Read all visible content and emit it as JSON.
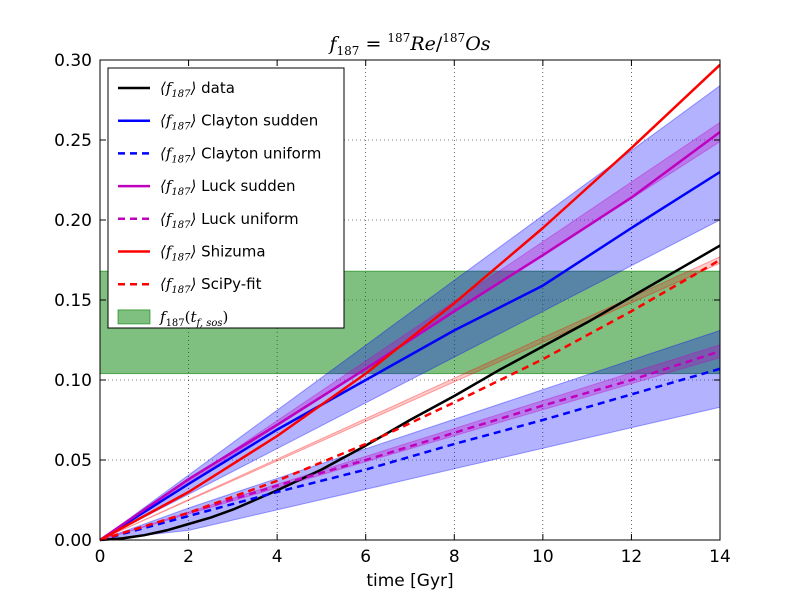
{
  "chart_data": {
    "type": "line",
    "title_parts": {
      "f": "f",
      "f_sub": "187",
      "eq": " = ",
      "sup1": "187",
      "re": "Re",
      "slash": "/",
      "sup2": "187",
      "os": "Os"
    },
    "xlabel": "time [Gyr]",
    "ylabel": "",
    "xlim": [
      0,
      14
    ],
    "ylim": [
      0,
      0.3
    ],
    "xticks": [
      0,
      2,
      4,
      6,
      8,
      10,
      12,
      14
    ],
    "xtick_labels": [
      "0",
      "2",
      "4",
      "6",
      "8",
      "10",
      "12",
      "14"
    ],
    "yticks": [
      0,
      0.05,
      0.1,
      0.15,
      0.2,
      0.25,
      0.3
    ],
    "ytick_labels": [
      "0.00",
      "0.05",
      "0.10",
      "0.15",
      "0.20",
      "0.25",
      "0.30"
    ],
    "grid": true,
    "legend_placement": "top-left",
    "series": [
      {
        "name": "data",
        "color": "#000000",
        "style": "solid",
        "x": [
          0,
          0.5,
          1,
          1.5,
          2,
          2.5,
          3,
          3.5,
          4,
          5,
          6,
          7,
          8,
          9,
          10,
          11,
          12,
          13,
          14
        ],
        "y": [
          0,
          0.001,
          0.003,
          0.006,
          0.01,
          0.014,
          0.019,
          0.025,
          0.031,
          0.044,
          0.059,
          0.075,
          0.09,
          0.106,
          0.121,
          0.136,
          0.152,
          0.168,
          0.184
        ]
      },
      {
        "name": "Clayton sudden",
        "color": "#0000ff",
        "style": "solid",
        "x": [
          0,
          2,
          4,
          6,
          8,
          10,
          12,
          14
        ],
        "y": [
          0,
          0.035,
          0.069,
          0.1,
          0.131,
          0.159,
          0.195,
          0.23
        ]
      },
      {
        "name": "Clayton uniform",
        "color": "#0000ff",
        "style": "dashed",
        "x": [
          0,
          2,
          4,
          6,
          8,
          10,
          12,
          14
        ],
        "y": [
          0,
          0.015,
          0.03,
          0.044,
          0.06,
          0.075,
          0.091,
          0.107
        ]
      },
      {
        "name": "Luck sudden",
        "color": "#bf00bf",
        "style": "solid",
        "x": [
          0,
          2,
          4,
          6,
          8,
          10,
          12,
          14
        ],
        "y": [
          0,
          0.038,
          0.072,
          0.107,
          0.143,
          0.178,
          0.214,
          0.255
        ]
      },
      {
        "name": "Luck uniform",
        "color": "#bf00bf",
        "style": "dashed",
        "x": [
          0,
          2,
          4,
          6,
          8,
          10,
          12,
          14
        ],
        "y": [
          0,
          0.017,
          0.034,
          0.05,
          0.067,
          0.084,
          0.1,
          0.118
        ]
      },
      {
        "name": "Shizuma",
        "color": "#ff0000",
        "style": "solid",
        "x": [
          0,
          2,
          4,
          6,
          8,
          10,
          12,
          14
        ],
        "y": [
          0,
          0.03,
          0.065,
          0.104,
          0.148,
          0.195,
          0.245,
          0.297
        ]
      },
      {
        "name": "SciPy-fit",
        "color": "#ff0000",
        "style": "dashed",
        "x": [
          0,
          2,
          4,
          6,
          8,
          10,
          12,
          14
        ],
        "y": [
          0,
          0.017,
          0.037,
          0.06,
          0.086,
          0.113,
          0.143,
          0.175
        ]
      }
    ],
    "bands": [
      {
        "color": "#0000ff",
        "opacity": 0.3,
        "x": [
          0,
          14
        ],
        "lower": [
          0,
          0.2
        ],
        "upper": [
          0,
          0.284
        ]
      },
      {
        "color": "#0000ff",
        "opacity": 0.3,
        "x": [
          0,
          2,
          14
        ],
        "lower": [
          0,
          0.006,
          0.083
        ],
        "upper": [
          0,
          0.02,
          0.131
        ]
      },
      {
        "color": "#bf00bf",
        "opacity": 0.3,
        "x": [
          0,
          14
        ],
        "lower": [
          0,
          0.249
        ],
        "upper": [
          0,
          0.261
        ]
      },
      {
        "color": "#bf00bf",
        "opacity": 0.3,
        "x": [
          0,
          14
        ],
        "lower": [
          0,
          0.114
        ],
        "upper": [
          0,
          0.122
        ]
      },
      {
        "color": "#ff0000",
        "opacity": 0.2,
        "x": [
          0,
          14
        ],
        "lower": [
          0,
          0.173
        ],
        "upper": [
          0,
          0.177
        ]
      }
    ],
    "hband": {
      "label_main": "f",
      "label_sub": "187",
      "label_paren_open": "(",
      "label_t": "t",
      "label_t_sub": "f, sos",
      "label_paren_close": ")",
      "color": "#008000",
      "opacity": 0.5,
      "y0": 0.104,
      "y1": 0.168
    },
    "legend_prefix": {
      "open": "⟨",
      "f": "f",
      "sub": "187",
      "close": "⟩"
    }
  }
}
